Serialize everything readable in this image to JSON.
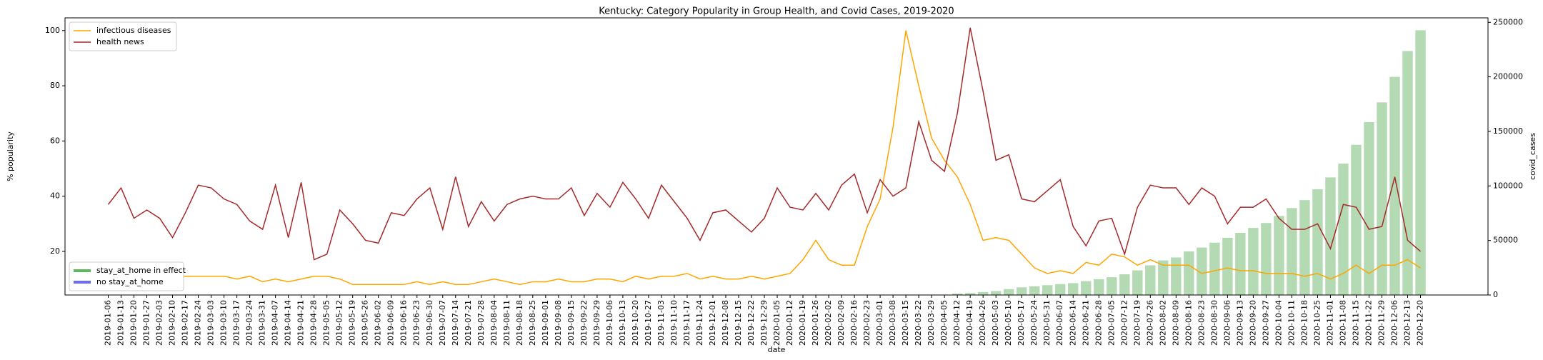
{
  "chart_data": {
    "type": "combo",
    "title": "Kentucky: Category Popularity in Group Health, and Covid Cases, 2019-2020",
    "x_label": "date",
    "y_label": "% popularity",
    "y2_label": "covid_cases",
    "categories": [
      "2019-01-06",
      "2019-01-13",
      "2019-01-20",
      "2019-01-27",
      "2019-02-03",
      "2019-02-10",
      "2019-02-17",
      "2019-02-24",
      "2019-03-03",
      "2019-03-10",
      "2019-03-17",
      "2019-03-24",
      "2019-03-31",
      "2019-04-07",
      "2019-04-14",
      "2019-04-21",
      "2019-04-28",
      "2019-05-05",
      "2019-05-12",
      "2019-05-19",
      "2019-05-26",
      "2019-06-02",
      "2019-06-09",
      "2019-06-16",
      "2019-06-23",
      "2019-06-30",
      "2019-07-07",
      "2019-07-14",
      "2019-07-21",
      "2019-07-28",
      "2019-08-04",
      "2019-08-11",
      "2019-08-18",
      "2019-08-25",
      "2019-09-01",
      "2019-09-08",
      "2019-09-15",
      "2019-09-22",
      "2019-09-29",
      "2019-10-06",
      "2019-10-13",
      "2019-10-20",
      "2019-10-27",
      "2019-11-03",
      "2019-11-10",
      "2019-11-17",
      "2019-11-24",
      "2019-12-01",
      "2019-12-08",
      "2019-12-15",
      "2019-12-22",
      "2019-12-29",
      "2020-01-05",
      "2020-01-12",
      "2020-01-19",
      "2020-01-26",
      "2020-02-02",
      "2020-02-09",
      "2020-02-16",
      "2020-02-23",
      "2020-03-01",
      "2020-03-08",
      "2020-03-15",
      "2020-03-22",
      "2020-03-29",
      "2020-04-05",
      "2020-04-12",
      "2020-04-19",
      "2020-04-26",
      "2020-05-03",
      "2020-05-10",
      "2020-05-17",
      "2020-05-24",
      "2020-05-31",
      "2020-06-07",
      "2020-06-14",
      "2020-06-21",
      "2020-06-28",
      "2020-07-05",
      "2020-07-12",
      "2020-07-19",
      "2020-07-26",
      "2020-08-02",
      "2020-08-09",
      "2020-08-16",
      "2020-08-23",
      "2020-08-30",
      "2020-09-06",
      "2020-09-13",
      "2020-09-20",
      "2020-09-27",
      "2020-10-04",
      "2020-10-11",
      "2020-10-18",
      "2020-10-25",
      "2020-11-01",
      "2020-11-08",
      "2020-11-15",
      "2020-11-22",
      "2020-11-29",
      "2020-12-06",
      "2020-12-13",
      "2020-12-20"
    ],
    "series": [
      {
        "name": "infectious diseases",
        "type": "line",
        "axis": "y",
        "color": "#ffa500",
        "values": [
          14,
          13,
          13,
          12,
          11,
          11,
          11,
          11,
          11,
          11,
          10,
          11,
          9,
          10,
          9,
          10,
          11,
          11,
          10,
          8,
          8,
          8,
          8,
          8,
          9,
          8,
          9,
          8,
          8,
          9,
          10,
          9,
          8,
          9,
          9,
          10,
          9,
          9,
          10,
          10,
          9,
          11,
          10,
          11,
          11,
          12,
          10,
          11,
          10,
          10,
          11,
          10,
          11,
          12,
          17,
          24,
          17,
          15,
          15,
          29,
          39,
          65,
          100,
          80,
          61,
          53,
          47,
          37,
          24,
          25,
          24,
          19,
          14,
          12,
          13,
          12,
          16,
          15,
          19,
          18,
          15,
          17,
          15,
          15,
          15,
          12,
          13,
          14,
          13,
          13,
          12,
          12,
          12,
          11,
          12,
          10,
          12,
          15,
          12,
          15,
          15,
          17,
          14
        ]
      },
      {
        "name": "health news",
        "type": "line",
        "axis": "y",
        "color": "#a52a2a",
        "values": [
          37,
          43,
          32,
          35,
          32,
          25,
          34,
          44,
          43,
          39,
          37,
          31,
          28,
          44,
          25,
          45,
          17,
          19,
          35,
          30,
          24,
          23,
          34,
          33,
          39,
          43,
          28,
          47,
          29,
          38,
          31,
          37,
          39,
          40,
          39,
          39,
          43,
          33,
          41,
          36,
          45,
          39,
          32,
          44,
          38,
          32,
          24,
          34,
          35,
          31,
          27,
          32,
          43,
          36,
          35,
          41,
          35,
          44,
          48,
          34,
          46,
          40,
          43,
          67,
          53,
          49,
          70,
          101,
          78,
          53,
          55,
          39,
          38,
          42,
          46,
          29,
          22,
          31,
          32,
          19,
          36,
          44,
          43,
          43,
          37,
          43,
          40,
          30,
          36,
          36,
          39,
          32,
          28,
          28,
          30,
          21,
          37,
          36,
          28,
          29,
          47,
          24,
          20
        ]
      },
      {
        "name": "covid_cases",
        "type": "bar",
        "axis": "y2",
        "color": "#b3dab2",
        "values": [
          null,
          null,
          null,
          null,
          null,
          null,
          null,
          null,
          null,
          null,
          null,
          null,
          null,
          null,
          null,
          null,
          null,
          null,
          null,
          null,
          null,
          null,
          null,
          null,
          null,
          null,
          null,
          null,
          null,
          null,
          null,
          null,
          null,
          null,
          null,
          null,
          null,
          null,
          null,
          null,
          null,
          null,
          null,
          null,
          null,
          null,
          null,
          null,
          null,
          null,
          null,
          null,
          null,
          null,
          null,
          null,
          null,
          null,
          null,
          null,
          null,
          null,
          null,
          null,
          null,
          null,
          1300,
          1800,
          2700,
          3600,
          5400,
          7000,
          8000,
          9000,
          10000,
          10900,
          12700,
          14500,
          16300,
          19000,
          22600,
          27200,
          31700,
          34400,
          40000,
          43500,
          48000,
          52500,
          57000,
          61500,
          66000,
          72500,
          79700,
          87000,
          97000,
          107800,
          120500,
          137700,
          158500,
          176600,
          200000,
          223700,
          242700
        ]
      }
    ],
    "ylim": [
      4.2,
      104.6
    ],
    "yticks": [
      20,
      40,
      60,
      80,
      100
    ],
    "y2lim": [
      0,
      254100
    ],
    "y2ticks": [
      0,
      50000,
      100000,
      150000,
      200000,
      250000
    ],
    "legend": "upper left",
    "legend2": [
      {
        "name": "stay_at_home in effect",
        "color": "#5cb85c"
      },
      {
        "name": "no stay_at_home",
        "color": "#6b6bf5"
      }
    ],
    "legend2_loc": "lower left"
  }
}
